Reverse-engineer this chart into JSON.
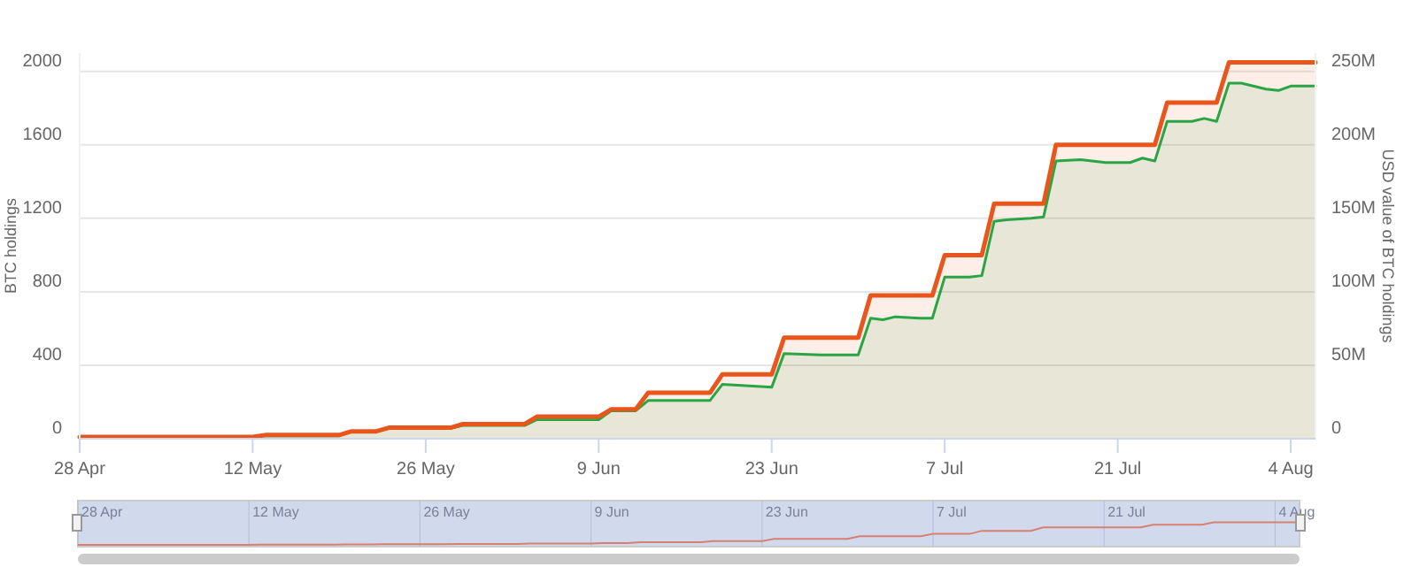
{
  "chart_data": {
    "type": "area",
    "ylabel": "BTC holdings",
    "y2label": "USD value of BTC holdings",
    "xlim": [
      "--04-28",
      "--08-06"
    ],
    "xticks": [
      {
        "value": "--04-28",
        "label": "28 Apr"
      },
      {
        "value": "--05-12",
        "label": "12 May"
      },
      {
        "value": "--05-26",
        "label": "26 May"
      },
      {
        "value": "--06-09",
        "label": "9 Jun"
      },
      {
        "value": "--06-23",
        "label": "23 Jun"
      },
      {
        "value": "--07-07",
        "label": "7 Jul"
      },
      {
        "value": "--07-21",
        "label": "21 Jul"
      },
      {
        "value": "--08-04",
        "label": "4 Aug"
      }
    ],
    "ylim": [
      0,
      2100
    ],
    "yticks": [
      0,
      400,
      800,
      1200,
      1600,
      2000
    ],
    "y2lim": [
      0,
      262.5
    ],
    "y2ticks": [
      0,
      {
        "value": 50,
        "label": "50M"
      },
      {
        "value": 100,
        "label": "100M"
      },
      {
        "value": 150,
        "label": "150M"
      },
      {
        "value": 200,
        "label": "200M"
      },
      {
        "value": 250,
        "label": "250M"
      }
    ],
    "grid": "y",
    "marker": "none",
    "line_style": "solid",
    "series": [
      {
        "color": "#e8561c",
        "axis": "y",
        "x": [
          "--04-28",
          "--05-06",
          "--05-07",
          "--05-12",
          "--05-13",
          "--05-19",
          "--05-20",
          "--05-22",
          "--05-23",
          "--05-28",
          "--05-29",
          "--06-03",
          "--06-04",
          "--06-09",
          "--06-10",
          "--06-12",
          "--06-13",
          "--06-18",
          "--06-19",
          "--06-23",
          "--06-24",
          "--06-30",
          "--07-01",
          "--07-06",
          "--07-07",
          "--07-10",
          "--07-11",
          "--07-15",
          "--07-16",
          "--07-24",
          "--07-25",
          "--07-29",
          "--07-30",
          "--08-06"
        ],
        "values": [
          10,
          10,
          10,
          10,
          20,
          20,
          40,
          40,
          60,
          60,
          80,
          80,
          120,
          120,
          160,
          160,
          250,
          250,
          350,
          350,
          550,
          550,
          780,
          780,
          1000,
          1000,
          1280,
          1280,
          1600,
          1600,
          1830,
          1830,
          2050,
          2050
        ]
      },
      {
        "color": "#2aa546",
        "axis": "y2",
        "x": [
          "--04-28",
          "--05-06",
          "--05-07",
          "--05-12",
          "--05-13",
          "--05-19",
          "--05-20",
          "--05-22",
          "--05-23",
          "--05-28",
          "--05-29",
          "--06-03",
          "--06-04",
          "--06-09",
          "--06-10",
          "--06-12",
          "--06-13",
          "--06-18",
          "--06-19",
          "--06-23",
          "--06-24",
          "--06-27",
          "--06-30",
          "--07-01",
          "--07-02",
          "--07-03",
          "--07-05",
          "--07-06",
          "--07-07",
          "--07-09",
          "--07-10",
          "--07-11",
          "--07-12",
          "--07-14",
          "--07-15",
          "--07-16",
          "--07-18",
          "--07-20",
          "--07-22",
          "--07-23",
          "--07-24",
          "--07-25",
          "--07-26",
          "--07-27",
          "--07-28",
          "--07-29",
          "--07-30",
          "--07-31",
          "--08-02",
          "--08-03",
          "--08-04",
          "--08-05",
          "--08-06"
        ],
        "values": [
          1,
          1,
          1,
          1,
          2,
          2,
          5,
          5,
          7,
          7,
          9,
          9,
          13,
          13,
          19,
          19,
          26,
          26,
          37,
          35,
          58,
          57,
          57,
          82,
          81,
          83,
          82,
          82,
          110,
          110,
          111,
          148,
          149,
          150,
          151,
          189,
          190,
          188,
          188,
          191,
          189,
          216,
          216,
          216,
          218,
          216,
          242,
          242,
          238,
          237,
          240,
          240,
          240
        ]
      }
    ]
  }
}
